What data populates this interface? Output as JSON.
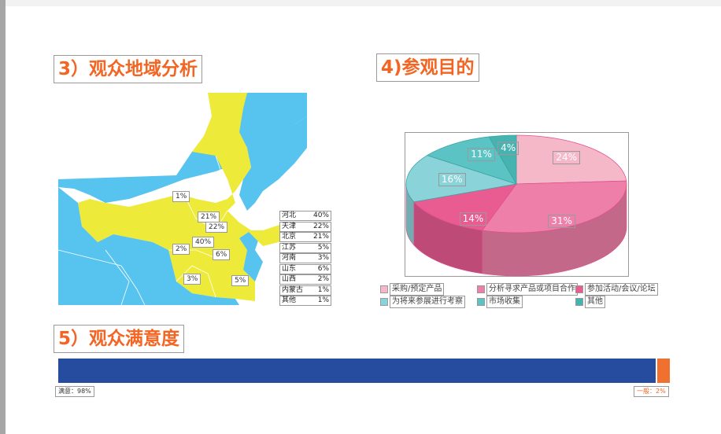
{
  "sections": {
    "region": "3）观众地域分析",
    "purpose": "4)参观目的",
    "satisfaction": "5）观众满意度"
  },
  "map_labels": [
    "1%",
    "21%",
    "22%",
    "40%",
    "2%",
    "6%",
    "3%",
    "5%"
  ],
  "region_table": [
    {
      "name": "河北",
      "value": "40%"
    },
    {
      "name": "天津",
      "value": "22%"
    },
    {
      "name": "北京",
      "value": "21%"
    },
    {
      "name": "江苏",
      "value": "5%"
    },
    {
      "name": "河南",
      "value": "3%"
    },
    {
      "name": "山东",
      "value": "6%"
    },
    {
      "name": "山西",
      "value": "2%"
    },
    {
      "name": "内蒙古",
      "value": "1%"
    },
    {
      "name": "其他",
      "value": "1%"
    }
  ],
  "colors": {
    "map_blue": "#57c3ef",
    "map_yellow": "#eeea3a",
    "title": "#f26522",
    "bar_blue": "#264c9f",
    "bar_orange": "#f07030"
  },
  "chart_data": [
    {
      "type": "pie",
      "categories": [
        "采购/预定产品",
        "分析寻求产品或项目合作",
        "参加活动/会议/论坛",
        "为将来参展进行考察",
        "市场收集",
        "其他"
      ],
      "values": [
        24,
        31,
        14,
        16,
        11,
        4
      ],
      "labels": [
        "24%",
        "31%",
        "14%",
        "16%",
        "11%",
        "4%"
      ],
      "colors": [
        "#f5b8c8",
        "#ee7fa8",
        "#e85c92",
        "#8ad3d8",
        "#5cc3c4",
        "#46b3b0"
      ],
      "legend": "bottom"
    },
    {
      "type": "bar",
      "stacked": true,
      "orientation": "horizontal",
      "categories": [
        "满意",
        "一般"
      ],
      "values": [
        98,
        2
      ],
      "labels": [
        "满意：98%",
        "一般：2%"
      ]
    }
  ]
}
